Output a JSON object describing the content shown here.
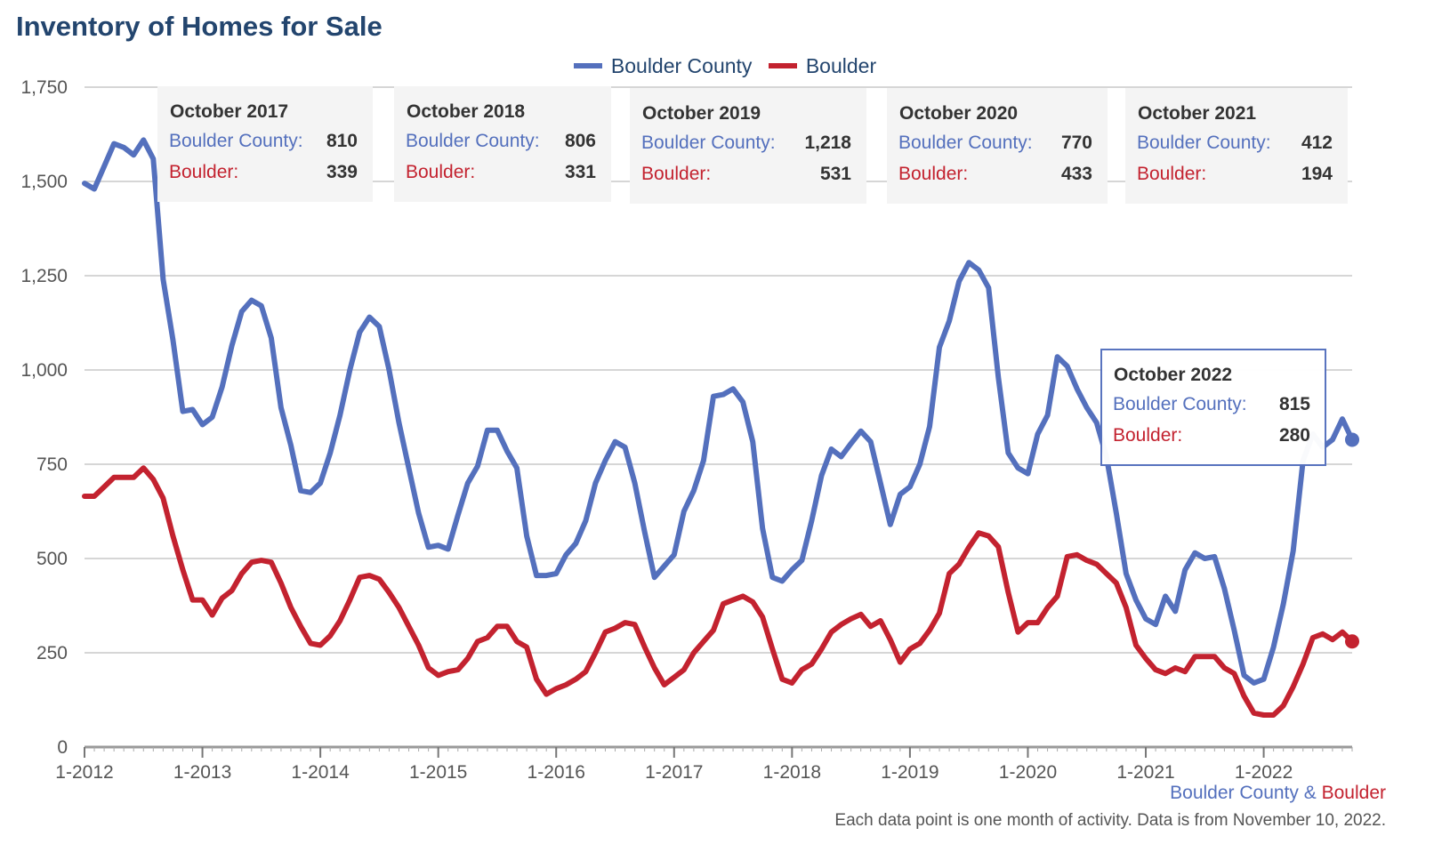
{
  "title": "Inventory of Homes for Sale",
  "colors": {
    "county": "#5470bd",
    "city": "#c3222f",
    "title": "#23456e",
    "grid": "#c8c8c8",
    "axis": "#999999"
  },
  "source": {
    "county": "Boulder County",
    "amp": "&",
    "city": "Boulder"
  },
  "note": "Each data point is one month of activity. Data is from November 10, 2022.",
  "chart_data": {
    "type": "line",
    "title": "Inventory of Homes for Sale",
    "x_start": "2012-01",
    "x_ticks": [
      "1-2012",
      "1-2013",
      "1-2014",
      "1-2015",
      "1-2016",
      "1-2017",
      "1-2018",
      "1-2019",
      "1-2020",
      "1-2021",
      "1-2022"
    ],
    "ylim": [
      0,
      1750
    ],
    "y_ticks": [
      0,
      250,
      500,
      750,
      1000,
      1250,
      1500,
      1750
    ],
    "y_tick_labels": [
      "0",
      "250",
      "500",
      "750",
      "1,000",
      "1,250",
      "1,500",
      "1,750"
    ],
    "grid": true,
    "legend_position": "top-center",
    "series": [
      {
        "name": "Boulder County",
        "color": "#5470bd",
        "values": [
          1495,
          1480,
          1540,
          1600,
          1590,
          1570,
          1610,
          1560,
          1240,
          1080,
          890,
          895,
          855,
          875,
          955,
          1065,
          1155,
          1185,
          1170,
          1085,
          900,
          800,
          680,
          675,
          700,
          780,
          880,
          1000,
          1100,
          1140,
          1115,
          1000,
          860,
          740,
          620,
          530,
          535,
          525,
          615,
          700,
          745,
          840,
          840,
          785,
          740,
          560,
          455,
          455,
          460,
          510,
          540,
          600,
          700,
          760,
          810,
          795,
          700,
          570,
          450,
          480,
          510,
          625,
          680,
          760,
          930,
          935,
          950,
          915,
          810,
          580,
          450,
          440,
          470,
          495,
          600,
          720,
          790,
          770,
          805,
          838,
          810,
          700,
          590,
          670,
          690,
          750,
          850,
          1060,
          1130,
          1235,
          1285,
          1265,
          1218,
          980,
          780,
          740,
          725,
          830,
          880,
          1035,
          1010,
          950,
          900,
          860,
          770,
          620,
          460,
          390,
          340,
          325,
          400,
          360,
          470,
          515,
          500,
          505,
          420,
          310,
          190,
          170,
          180,
          265,
          380,
          520,
          760,
          830,
          795,
          815,
          870,
          815
        ]
      },
      {
        "name": "Boulder",
        "color": "#c3222f",
        "values": [
          665,
          665,
          690,
          715,
          715,
          715,
          740,
          710,
          660,
          560,
          470,
          390,
          390,
          350,
          395,
          415,
          460,
          490,
          495,
          490,
          435,
          370,
          320,
          275,
          270,
          295,
          335,
          390,
          450,
          455,
          445,
          410,
          370,
          320,
          270,
          210,
          190,
          200,
          205,
          235,
          280,
          290,
          320,
          320,
          280,
          265,
          180,
          140,
          155,
          165,
          180,
          200,
          250,
          305,
          315,
          330,
          325,
          265,
          210,
          165,
          185,
          205,
          250,
          280,
          310,
          380,
          390,
          400,
          385,
          345,
          260,
          180,
          170,
          205,
          220,
          260,
          305,
          325,
          340,
          352,
          320,
          335,
          285,
          225,
          260,
          275,
          310,
          355,
          460,
          485,
          530,
          568,
          560,
          531,
          410,
          305,
          330,
          330,
          370,
          400,
          505,
          510,
          495,
          485,
          460,
          435,
          370,
          270,
          235,
          205,
          195,
          210,
          200,
          240,
          240,
          240,
          210,
          195,
          135,
          90,
          85,
          85,
          110,
          160,
          220,
          290,
          300,
          285,
          305,
          280
        ]
      }
    ],
    "tooltips": [
      {
        "title": "October 2017",
        "county_label": "Boulder County:",
        "county_value": "810",
        "city_label": "Boulder:",
        "city_value": "339"
      },
      {
        "title": "October 2018",
        "county_label": "Boulder County:",
        "county_value": "806",
        "city_label": "Boulder:",
        "city_value": "331"
      },
      {
        "title": "October 2019",
        "county_label": "Boulder County:",
        "county_value": "1,218",
        "city_label": "Boulder:",
        "city_value": "531"
      },
      {
        "title": "October 2020",
        "county_label": "Boulder County:",
        "county_value": "770",
        "city_label": "Boulder:",
        "city_value": "433"
      },
      {
        "title": "October 2021",
        "county_label": "Boulder County:",
        "county_value": "412",
        "city_label": "Boulder:",
        "city_value": "194"
      },
      {
        "title": "October 2022",
        "county_label": "Boulder County:",
        "county_value": "815",
        "city_label": "Boulder:",
        "city_value": "280"
      }
    ]
  }
}
